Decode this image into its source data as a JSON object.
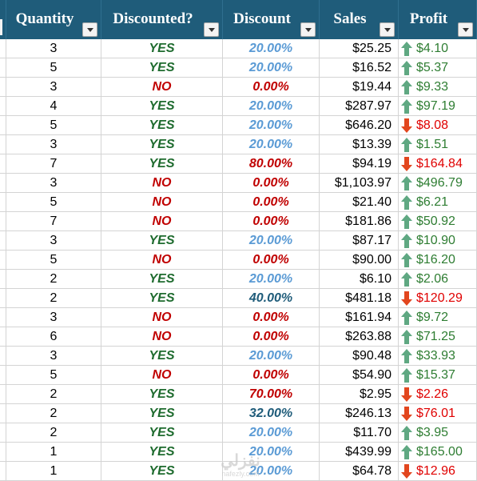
{
  "headers": {
    "quantity": "Quantity",
    "discounted": "Discounted?",
    "discount": "Discount",
    "sales": "Sales",
    "profit": "Profit"
  },
  "colors": {
    "header_bg": "#1f5c7a",
    "yes": "#1e6b2e",
    "no": "#c00000",
    "discount_light": "#5b9bd5",
    "discount_dark": "#1f5c7a",
    "discount_red": "#c00000",
    "profit_positive": "#2e7d32",
    "profit_negative": "#e00000",
    "arrow_up": "#5fa882",
    "arrow_down": "#e2461e"
  },
  "icons": {
    "header_dropdown": "filter-dropdown-icon",
    "profit_up": "arrow-up-icon",
    "profit_down": "arrow-down-icon"
  },
  "rows": [
    {
      "quantity": "3",
      "discounted": "YES",
      "discount": "20.00%",
      "discount_tier": "light",
      "sales": "$25.25",
      "profit": "$4.10",
      "trend": "up"
    },
    {
      "quantity": "5",
      "discounted": "YES",
      "discount": "20.00%",
      "discount_tier": "light",
      "sales": "$16.52",
      "profit": "$5.37",
      "trend": "up"
    },
    {
      "quantity": "3",
      "discounted": "NO",
      "discount": "0.00%",
      "discount_tier": "red",
      "sales": "$19.44",
      "profit": "$9.33",
      "trend": "up"
    },
    {
      "quantity": "4",
      "discounted": "YES",
      "discount": "20.00%",
      "discount_tier": "light",
      "sales": "$287.97",
      "profit": "$97.19",
      "trend": "up"
    },
    {
      "quantity": "5",
      "discounted": "YES",
      "discount": "20.00%",
      "discount_tier": "light",
      "sales": "$646.20",
      "profit": "$8.08",
      "trend": "down"
    },
    {
      "quantity": "3",
      "discounted": "YES",
      "discount": "20.00%",
      "discount_tier": "light",
      "sales": "$13.39",
      "profit": "$1.51",
      "trend": "up"
    },
    {
      "quantity": "7",
      "discounted": "YES",
      "discount": "80.00%",
      "discount_tier": "red",
      "sales": "$94.19",
      "profit": "$164.84",
      "trend": "down"
    },
    {
      "quantity": "3",
      "discounted": "NO",
      "discount": "0.00%",
      "discount_tier": "red",
      "sales": "$1,103.97",
      "profit": "$496.79",
      "trend": "up"
    },
    {
      "quantity": "5",
      "discounted": "NO",
      "discount": "0.00%",
      "discount_tier": "red",
      "sales": "$21.40",
      "profit": "$6.21",
      "trend": "up"
    },
    {
      "quantity": "7",
      "discounted": "NO",
      "discount": "0.00%",
      "discount_tier": "red",
      "sales": "$181.86",
      "profit": "$50.92",
      "trend": "up"
    },
    {
      "quantity": "3",
      "discounted": "YES",
      "discount": "20.00%",
      "discount_tier": "light",
      "sales": "$87.17",
      "profit": "$10.90",
      "trend": "up"
    },
    {
      "quantity": "5",
      "discounted": "NO",
      "discount": "0.00%",
      "discount_tier": "red",
      "sales": "$90.00",
      "profit": "$16.20",
      "trend": "up"
    },
    {
      "quantity": "2",
      "discounted": "YES",
      "discount": "20.00%",
      "discount_tier": "light",
      "sales": "$6.10",
      "profit": "$2.06",
      "trend": "up"
    },
    {
      "quantity": "2",
      "discounted": "YES",
      "discount": "40.00%",
      "discount_tier": "dark",
      "sales": "$481.18",
      "profit": "$120.29",
      "trend": "down"
    },
    {
      "quantity": "3",
      "discounted": "NO",
      "discount": "0.00%",
      "discount_tier": "red",
      "sales": "$161.94",
      "profit": "$9.72",
      "trend": "up"
    },
    {
      "quantity": "6",
      "discounted": "NO",
      "discount": "0.00%",
      "discount_tier": "red",
      "sales": "$263.88",
      "profit": "$71.25",
      "trend": "up"
    },
    {
      "quantity": "3",
      "discounted": "YES",
      "discount": "20.00%",
      "discount_tier": "light",
      "sales": "$90.48",
      "profit": "$33.93",
      "trend": "up"
    },
    {
      "quantity": "5",
      "discounted": "NO",
      "discount": "0.00%",
      "discount_tier": "red",
      "sales": "$54.90",
      "profit": "$15.37",
      "trend": "up"
    },
    {
      "quantity": "2",
      "discounted": "YES",
      "discount": "70.00%",
      "discount_tier": "red",
      "sales": "$2.95",
      "profit": "$2.26",
      "trend": "down"
    },
    {
      "quantity": "2",
      "discounted": "YES",
      "discount": "32.00%",
      "discount_tier": "dark",
      "sales": "$246.13",
      "profit": "$76.01",
      "trend": "down"
    },
    {
      "quantity": "2",
      "discounted": "YES",
      "discount": "20.00%",
      "discount_tier": "light",
      "sales": "$11.70",
      "profit": "$3.95",
      "trend": "up"
    },
    {
      "quantity": "1",
      "discounted": "YES",
      "discount": "20.00%",
      "discount_tier": "light",
      "sales": "$439.99",
      "profit": "$165.00",
      "trend": "up"
    },
    {
      "quantity": "1",
      "discounted": "YES",
      "discount": "20.00%",
      "discount_tier": "light",
      "sales": "$64.78",
      "profit": "$12.96",
      "trend": "down"
    }
  ],
  "watermark": {
    "main": "نفزلي",
    "sub": "nafezly.com"
  }
}
